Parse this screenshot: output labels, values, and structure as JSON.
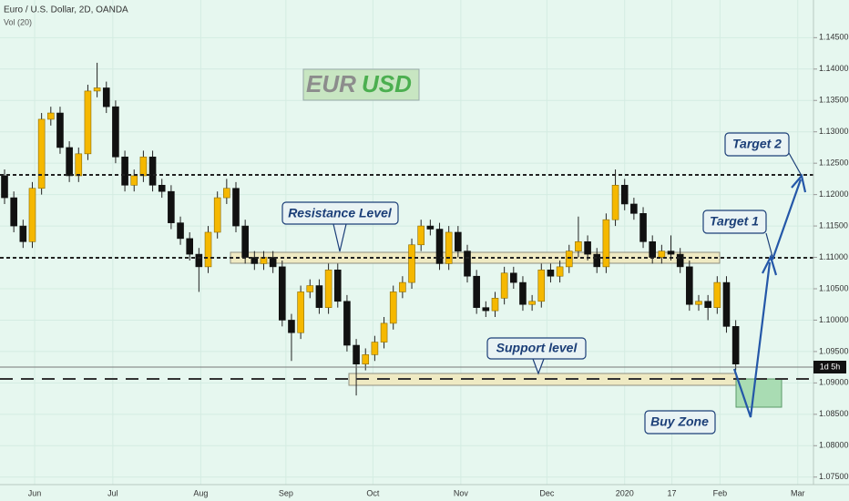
{
  "chart_data": {
    "type": "candlestick",
    "title": "Euro / U.S. Dollar, 2D, OANDA",
    "subtitle": "Vol (20)",
    "logo": {
      "base": "EUR",
      "quote": "USD"
    },
    "annotations": {
      "resistance": "Resistance Level",
      "support": "Support level",
      "target1": "Target 1",
      "target2": "Target 2",
      "buy_zone": "Buy Zone",
      "countdown": "1d 5h"
    },
    "up_color": "#f5b800",
    "down_color": "#111111",
    "grid": true,
    "open": [
      1.123,
      1.1195,
      1.115,
      1.1125,
      1.121,
      1.132,
      1.133,
      1.1275,
      1.123,
      1.1265,
      1.1365,
      1.137,
      1.134,
      1.126,
      1.1215,
      1.123,
      1.126,
      1.1215,
      1.1205,
      1.1155,
      1.113,
      1.1105,
      1.1085,
      1.114,
      1.1195,
      1.121,
      1.115,
      1.11,
      1.109,
      1.11,
      1.1085,
      1.1,
      1.098,
      1.1045,
      1.1055,
      1.102,
      1.108,
      1.103,
      1.096,
      1.093,
      1.0945,
      1.0965,
      1.0995,
      1.1045,
      1.106,
      1.112,
      1.115,
      1.1145,
      1.109,
      1.114,
      1.111,
      1.107,
      1.102,
      1.1015,
      1.1035,
      1.1075,
      1.106,
      1.1025,
      1.103,
      1.108,
      1.107,
      1.1085,
      1.111,
      1.1125,
      1.1105,
      1.1085,
      1.116,
      1.1215,
      1.1185,
      1.117,
      1.1125,
      1.11,
      1.111,
      1.1105,
      1.1085,
      1.1025,
      1.103,
      1.102,
      1.106,
      1.099
    ],
    "high": [
      1.124,
      1.1205,
      1.116,
      1.122,
      1.133,
      1.134,
      1.134,
      1.1285,
      1.1275,
      1.1375,
      1.141,
      1.138,
      1.135,
      1.127,
      1.124,
      1.127,
      1.127,
      1.1225,
      1.1215,
      1.1165,
      1.114,
      1.1115,
      1.115,
      1.1205,
      1.1225,
      1.122,
      1.116,
      1.111,
      1.111,
      1.111,
      1.1095,
      1.101,
      1.1055,
      1.1065,
      1.1065,
      1.109,
      1.109,
      1.104,
      1.097,
      1.0955,
      1.0975,
      1.1005,
      1.1055,
      1.107,
      1.113,
      1.116,
      1.116,
      1.1155,
      1.115,
      1.115,
      1.112,
      1.108,
      1.103,
      1.1045,
      1.1085,
      1.1085,
      1.107,
      1.104,
      1.109,
      1.109,
      1.1095,
      1.112,
      1.1165,
      1.1135,
      1.1115,
      1.117,
      1.124,
      1.1225,
      1.1195,
      1.118,
      1.1135,
      1.112,
      1.1135,
      1.1115,
      1.1095,
      1.104,
      1.104,
      1.107,
      1.107,
      1.1
    ],
    "low": [
      1.1185,
      1.114,
      1.1115,
      1.1115,
      1.12,
      1.131,
      1.1265,
      1.122,
      1.122,
      1.1255,
      1.1355,
      1.133,
      1.125,
      1.1205,
      1.1205,
      1.122,
      1.1205,
      1.1195,
      1.1145,
      1.112,
      1.1095,
      1.1045,
      1.1075,
      1.113,
      1.1185,
      1.114,
      1.109,
      1.108,
      1.108,
      1.1075,
      1.099,
      1.0935,
      1.097,
      1.1035,
      1.101,
      1.101,
      1.102,
      1.095,
      1.088,
      1.092,
      1.0935,
      1.0955,
      1.0985,
      1.1035,
      1.105,
      1.111,
      1.1135,
      1.108,
      1.108,
      1.11,
      1.106,
      1.101,
      1.1005,
      1.1005,
      1.1025,
      1.105,
      1.1015,
      1.1015,
      1.102,
      1.106,
      1.106,
      1.1075,
      1.11,
      1.1095,
      1.1075,
      1.1075,
      1.115,
      1.1175,
      1.116,
      1.1115,
      1.109,
      1.109,
      1.1095,
      1.1075,
      1.1015,
      1.1015,
      1.1,
      1.101,
      1.098,
      1.092
    ],
    "close": [
      1.1195,
      1.115,
      1.1125,
      1.121,
      1.132,
      1.133,
      1.1275,
      1.123,
      1.1265,
      1.1365,
      1.137,
      1.134,
      1.126,
      1.1215,
      1.123,
      1.126,
      1.1215,
      1.1205,
      1.1155,
      1.113,
      1.1105,
      1.1085,
      1.114,
      1.1195,
      1.121,
      1.115,
      1.11,
      1.109,
      1.11,
      1.1085,
      1.1,
      1.098,
      1.1045,
      1.1055,
      1.102,
      1.108,
      1.103,
      1.096,
      1.093,
      1.0945,
      1.0965,
      1.0995,
      1.1045,
      1.106,
      1.112,
      1.115,
      1.1145,
      1.109,
      1.114,
      1.111,
      1.107,
      1.102,
      1.1015,
      1.1035,
      1.1075,
      1.106,
      1.1025,
      1.103,
      1.108,
      1.107,
      1.1085,
      1.111,
      1.1125,
      1.1105,
      1.1085,
      1.116,
      1.1215,
      1.1185,
      1.117,
      1.1125,
      1.11,
      1.111,
      1.1105,
      1.1085,
      1.1025,
      1.103,
      1.102,
      1.106,
      1.099,
      1.093
    ],
    "xticks": [
      {
        "value": 3.25,
        "label": "Jun"
      },
      {
        "value": 11.7,
        "label": "Jul"
      },
      {
        "value": 21.2,
        "label": "Aug"
      },
      {
        "value": 30.4,
        "label": "Sep"
      },
      {
        "value": 39.8,
        "label": "Oct"
      },
      {
        "value": 49.3,
        "label": "Nov"
      },
      {
        "value": 58.6,
        "label": "Dec"
      },
      {
        "value": 67.0,
        "label": "2020"
      },
      {
        "value": 72.1,
        "label": "17"
      },
      {
        "value": 77.3,
        "label": "Feb"
      },
      {
        "value": 85.7,
        "label": "Mar"
      }
    ],
    "ylim": [
      1.0738,
      1.151
    ],
    "yticks": [
      {
        "value": 1.075,
        "label": "1.07500"
      },
      {
        "value": 1.08,
        "label": "1.08000"
      },
      {
        "value": 1.085,
        "label": "1.08500"
      },
      {
        "value": 1.09,
        "label": "1.09000"
      },
      {
        "value": 1.095,
        "label": "1.09500"
      },
      {
        "value": 1.1,
        "label": "1.10000"
      },
      {
        "value": 1.105,
        "label": "1.10500"
      },
      {
        "value": 1.11,
        "label": "1.11000"
      },
      {
        "value": 1.115,
        "label": "1.11500"
      },
      {
        "value": 1.12,
        "label": "1.12000"
      },
      {
        "value": 1.125,
        "label": "1.12500"
      },
      {
        "value": 1.13,
        "label": "1.13000"
      },
      {
        "value": 1.135,
        "label": "1.13500"
      },
      {
        "value": 1.14,
        "label": "1.14000"
      },
      {
        "value": 1.145,
        "label": "1.14500"
      }
    ]
  }
}
